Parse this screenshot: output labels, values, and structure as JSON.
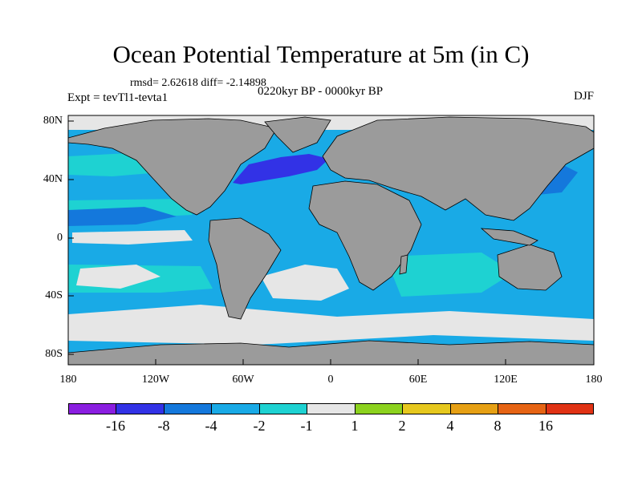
{
  "title": "Ocean Potential Temperature at 5m (in C)",
  "stats": "rmsd= 2.62618 diff= -2.14898",
  "experiment": "Expt = tevTl1-tevta1",
  "period": "0220kyr BP - 0000kyr BP",
  "season": "DJF",
  "axes": {
    "y_labels": [
      "80N",
      "40N",
      "0",
      "40S",
      "80S"
    ],
    "x_labels": [
      "180",
      "120W",
      "60W",
      "0",
      "60E",
      "120E",
      "180"
    ]
  },
  "colorbar": {
    "labels": [
      "-16",
      "-8",
      "-4",
      "-2",
      "-1",
      "1",
      "2",
      "4",
      "8",
      "16"
    ],
    "colors": [
      "#8a1ee0",
      "#3232e6",
      "#1478dc",
      "#19aae6",
      "#1ed2d2",
      "#e6e6e6",
      "#8cd21e",
      "#e6c81e",
      "#e6a014",
      "#e66414",
      "#e03214"
    ]
  },
  "colors": {
    "land": "#9b9b9b",
    "ocean_base": "#19aae6",
    "ice": "#e6e6e6"
  }
}
